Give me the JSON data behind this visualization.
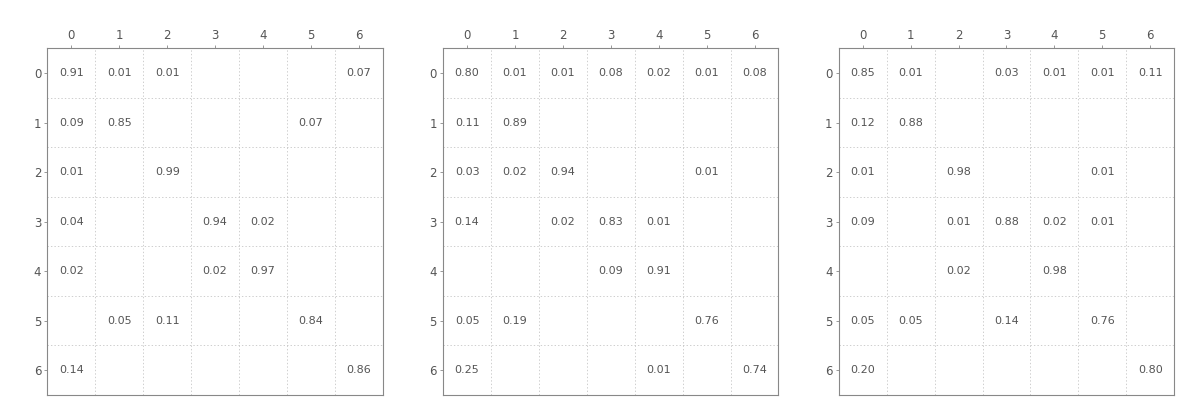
{
  "matrices": [
    [
      [
        0.91,
        0.01,
        0.01,
        null,
        null,
        null,
        0.07
      ],
      [
        0.09,
        0.85,
        null,
        null,
        null,
        0.07,
        null
      ],
      [
        0.01,
        null,
        0.99,
        null,
        null,
        null,
        null
      ],
      [
        0.04,
        null,
        null,
        0.94,
        0.02,
        null,
        null
      ],
      [
        0.02,
        null,
        null,
        0.02,
        0.97,
        null,
        null
      ],
      [
        null,
        0.05,
        0.11,
        null,
        null,
        0.84,
        null
      ],
      [
        0.14,
        null,
        null,
        null,
        null,
        null,
        0.86
      ]
    ],
    [
      [
        0.8,
        0.01,
        0.01,
        0.08,
        0.02,
        0.01,
        0.08
      ],
      [
        0.11,
        0.89,
        null,
        null,
        null,
        null,
        null
      ],
      [
        0.03,
        0.02,
        0.94,
        null,
        null,
        0.01,
        null
      ],
      [
        0.14,
        null,
        0.02,
        0.83,
        0.01,
        null,
        null
      ],
      [
        null,
        null,
        null,
        0.09,
        0.91,
        null,
        null
      ],
      [
        0.05,
        0.19,
        null,
        null,
        null,
        0.76,
        null
      ],
      [
        0.25,
        null,
        null,
        null,
        0.01,
        null,
        0.74
      ]
    ],
    [
      [
        0.85,
        0.01,
        null,
        0.03,
        0.01,
        0.01,
        0.11
      ],
      [
        0.12,
        0.88,
        null,
        null,
        null,
        null,
        null
      ],
      [
        0.01,
        null,
        0.98,
        null,
        null,
        0.01,
        null
      ],
      [
        0.09,
        null,
        0.01,
        0.88,
        0.02,
        0.01,
        null
      ],
      [
        null,
        null,
        0.02,
        null,
        0.98,
        null,
        null
      ],
      [
        0.05,
        0.05,
        null,
        0.14,
        null,
        0.76,
        null
      ],
      [
        0.2,
        null,
        null,
        null,
        null,
        null,
        0.8
      ]
    ]
  ],
  "n": 7,
  "tick_labels": [
    "0",
    "1",
    "2",
    "3",
    "4",
    "5",
    "6"
  ],
  "text_color": "#555555",
  "grid_color": "#bbbbbb",
  "border_color": "#888888",
  "bg_color": "#ffffff",
  "fontsize": 8.0,
  "tick_fontsize": 8.5,
  "figsize": [
    11.86,
    4.03
  ],
  "dpi": 100
}
